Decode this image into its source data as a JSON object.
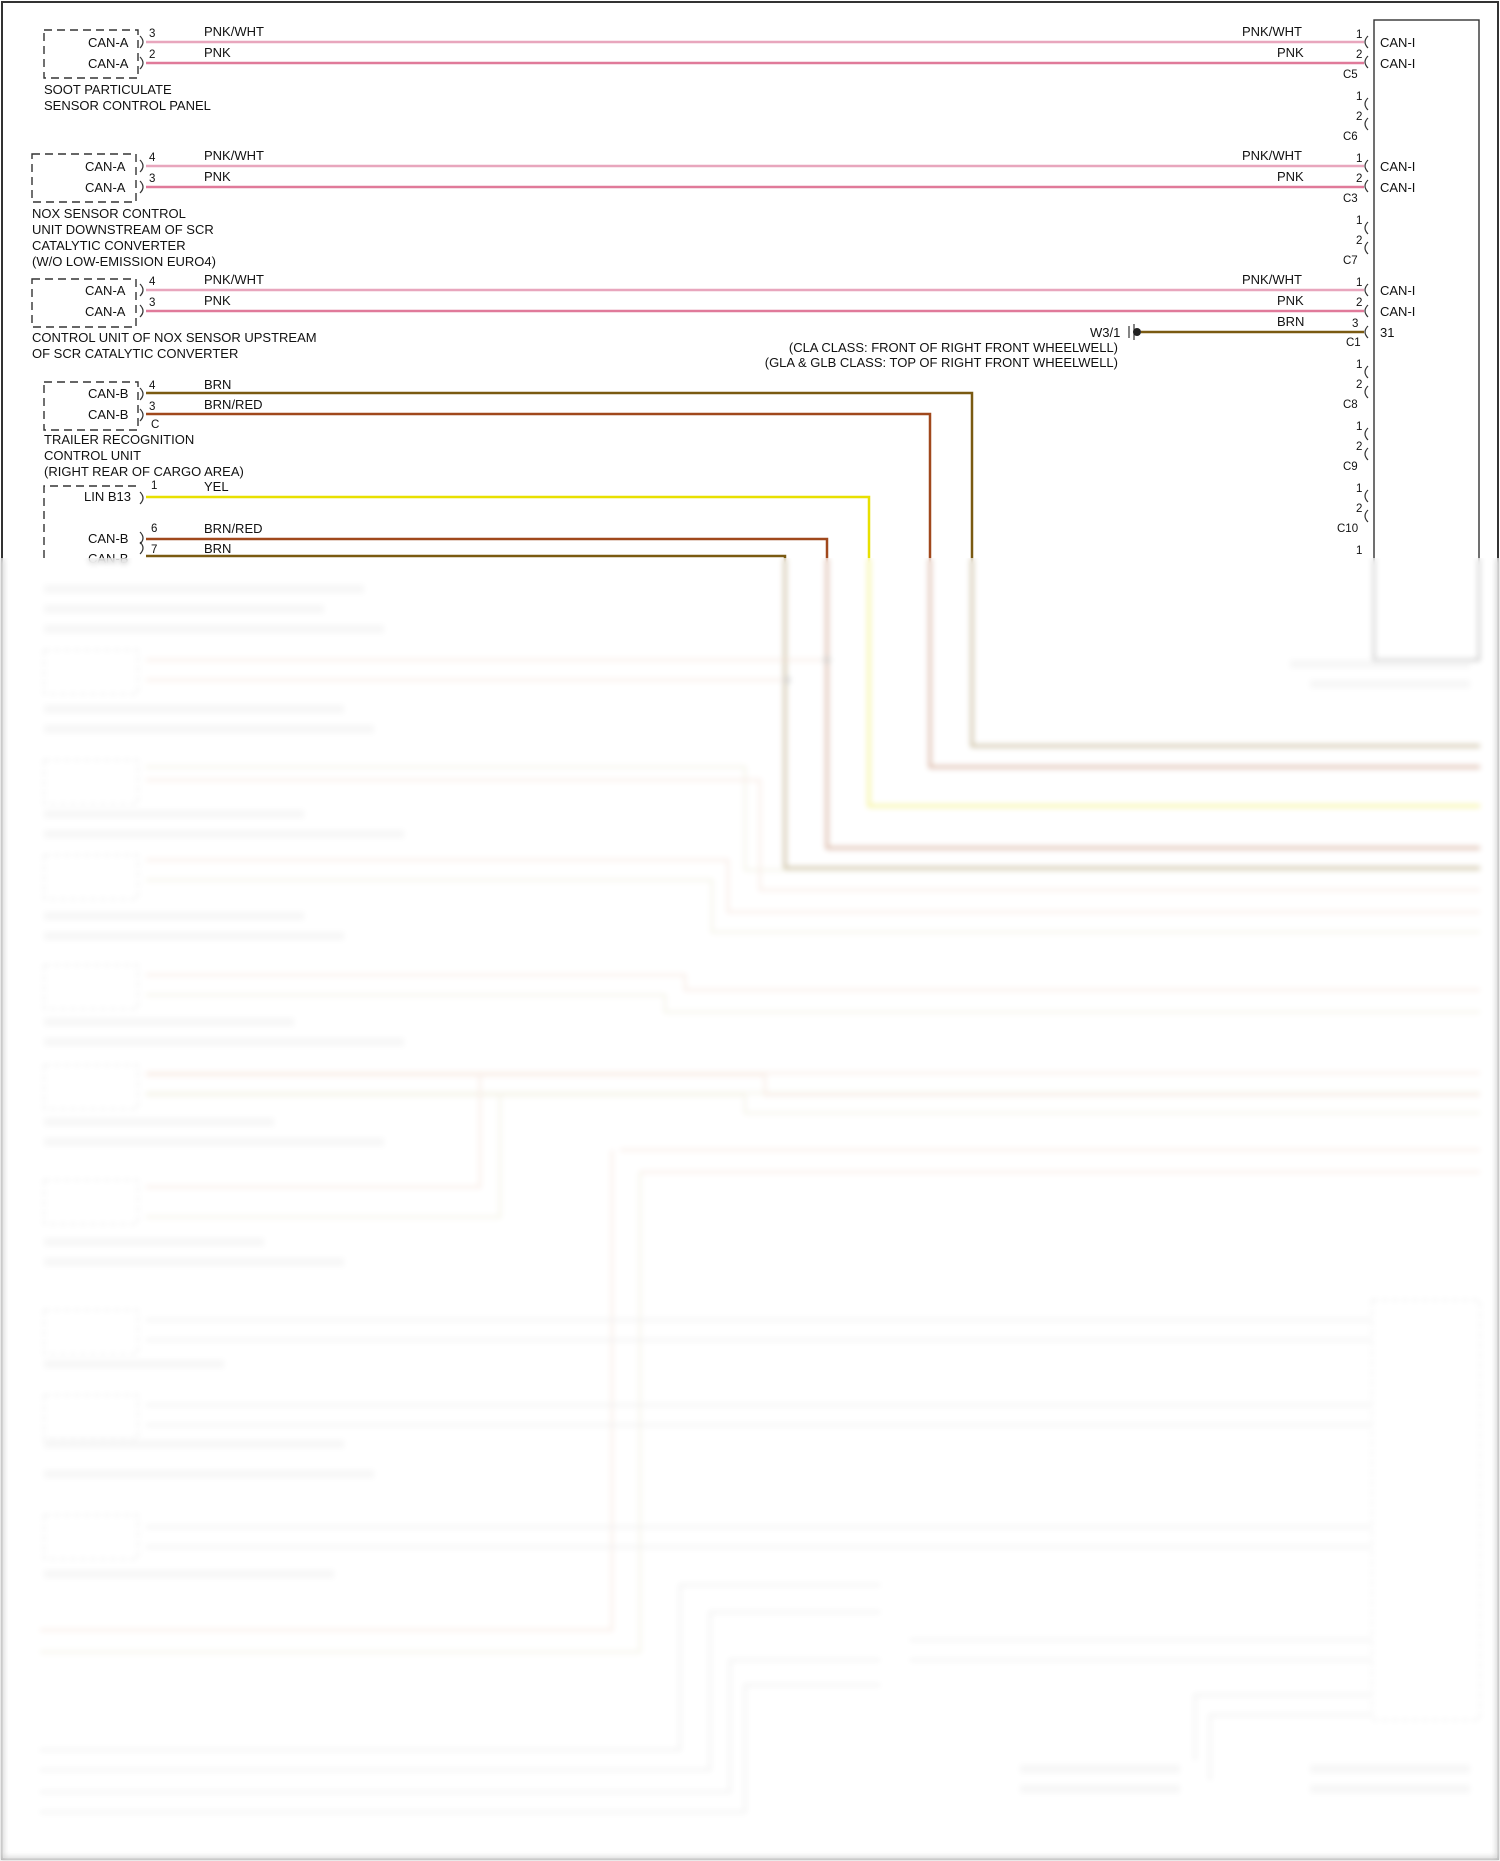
{
  "modules": {
    "soot": {
      "line1": "SOOT PARTICULATE",
      "line2": "SENSOR CONTROL PANEL",
      "pins": [
        {
          "name": "CAN-A",
          "num": "3"
        },
        {
          "name": "CAN-A",
          "num": "2"
        }
      ]
    },
    "nox_down": {
      "line1": "NOX SENSOR CONTROL",
      "line2": "UNIT DOWNSTREAM OF SCR",
      "line3": "CATALYTIC CONVERTER",
      "line4": "(W/O LOW-EMISSION EURO4)",
      "pins": [
        {
          "name": "CAN-A",
          "num": "4"
        },
        {
          "name": "CAN-A",
          "num": "3"
        }
      ]
    },
    "nox_up": {
      "line1": "CONTROL UNIT OF NOX SENSOR UPSTREAM",
      "line2": "OF SCR CATALYTIC CONVERTER",
      "pins": [
        {
          "name": "CAN-A",
          "num": "4"
        },
        {
          "name": "CAN-A",
          "num": "3"
        }
      ]
    },
    "trailer": {
      "line1": "TRAILER RECOGNITION",
      "line2": "CONTROL UNIT",
      "line3": "(RIGHT REAR OF CARGO AREA)",
      "connector": "C",
      "pins": [
        {
          "name": "CAN-B",
          "num": "4"
        },
        {
          "name": "CAN-B",
          "num": "3"
        }
      ]
    },
    "lin_module": {
      "pins": [
        {
          "name": "LIN B13",
          "num": "1"
        },
        {
          "name": "CAN-B",
          "num": "6"
        },
        {
          "name": "CAN-B",
          "num": "7"
        }
      ]
    }
  },
  "wires": {
    "pnk_wht": "PNK/WHT",
    "pnk": "PNK",
    "brn": "BRN",
    "brn_red": "BRN/RED",
    "yel": "YEL"
  },
  "right_module": {
    "can_i": "CAN-I",
    "ground_pin": "31",
    "connectors": [
      "C5",
      "C6",
      "C3",
      "C7",
      "C1",
      "C8",
      "C9",
      "C10"
    ]
  },
  "pin_numbers": {
    "one": "1",
    "two": "2",
    "three": "3"
  },
  "ground": {
    "name": "W3/1",
    "note1": "(CLA CLASS: FRONT OF RIGHT FRONT WHEELWELL)",
    "note2": "(GLA & GLB CLASS: TOP OF RIGHT FRONT WHEELWELL)"
  },
  "colors": {
    "pnk_wht": "#e8a6bd",
    "pnk": "#e07a9a",
    "brn": "#7a5a12",
    "brn_red": "#a0481c",
    "yel": "#e8e000"
  }
}
